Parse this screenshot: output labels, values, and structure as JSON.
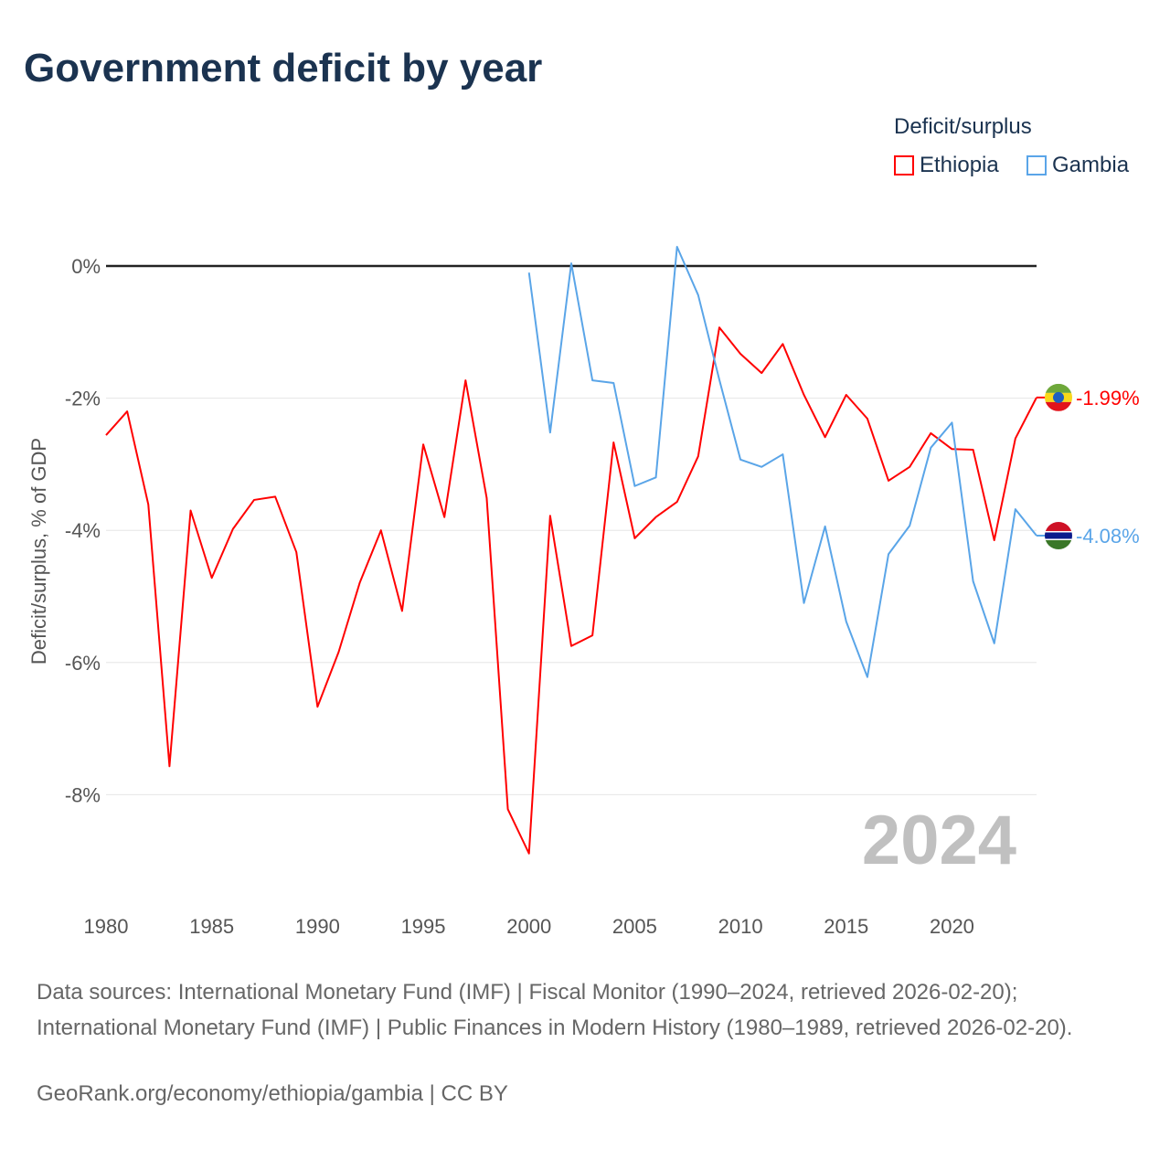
{
  "title": "Government deficit by year",
  "legend": {
    "title": "Deficit/surplus",
    "items": [
      {
        "label": "Ethiopia",
        "color": "#ff0000"
      },
      {
        "label": "Gambia",
        "color": "#5aa5e8"
      }
    ]
  },
  "year_label": "2024",
  "sources": "Data sources: International Monetary Fund (IMF) | Fiscal Monitor (1990–2024, retrieved 2026-02-20); International Monetary Fund (IMF) | Public Finances in Modern History (1980–1989, retrieved 2026-02-20).",
  "credit": "GeoRank.org/economy/ethiopia/gambia | CC BY",
  "chart_data": {
    "type": "line",
    "title": "Government deficit by year",
    "xlabel": "",
    "ylabel": "Deficit/surplus, % of GDP",
    "xlim": [
      1980,
      2024
    ],
    "ylim": [
      -9.5,
      0.5
    ],
    "x_ticks": [
      "1980",
      "1985",
      "1990",
      "1995",
      "2000",
      "2005",
      "2010",
      "2015",
      "2020"
    ],
    "y_ticks": [
      {
        "v": 0,
        "label": "0%"
      },
      {
        "v": -2,
        "label": "-2%"
      },
      {
        "v": -4,
        "label": "-4%"
      },
      {
        "v": -6,
        "label": "-6%"
      },
      {
        "v": -8,
        "label": "-8%"
      }
    ],
    "grid": true,
    "legend_position": "top-right",
    "series": [
      {
        "name": "Ethiopia",
        "color": "#ff0000",
        "start_year": 1980,
        "end_label": "-1.99%",
        "values": [
          -2.56,
          -2.2,
          -3.61,
          -7.57,
          -3.7,
          -4.72,
          -3.98,
          -3.54,
          -3.49,
          -4.33,
          -6.67,
          -5.84,
          -4.79,
          -4.0,
          -5.22,
          -2.7,
          -3.8,
          -1.73,
          -3.51,
          -8.22,
          -8.89,
          -3.78,
          -5.75,
          -5.59,
          -2.67,
          -4.12,
          -3.8,
          -3.57,
          -2.88,
          -0.93,
          -1.33,
          -1.62,
          -1.18,
          -1.95,
          -2.59,
          -1.95,
          -2.31,
          -3.25,
          -3.04,
          -2.53,
          -2.77,
          -2.78,
          -4.15,
          -2.61,
          -1.99
        ]
      },
      {
        "name": "Gambia",
        "color": "#5aa5e8",
        "start_year": 2000,
        "end_label": "-4.08%",
        "values": [
          -0.1,
          -2.52,
          0.04,
          -1.73,
          -1.77,
          -3.33,
          -3.2,
          0.29,
          -0.44,
          -1.72,
          -2.93,
          -3.04,
          -2.85,
          -5.1,
          -3.94,
          -5.38,
          -6.22,
          -4.36,
          -3.93,
          -2.75,
          -2.37,
          -4.77,
          -5.71,
          -3.68,
          -4.08
        ]
      }
    ]
  }
}
